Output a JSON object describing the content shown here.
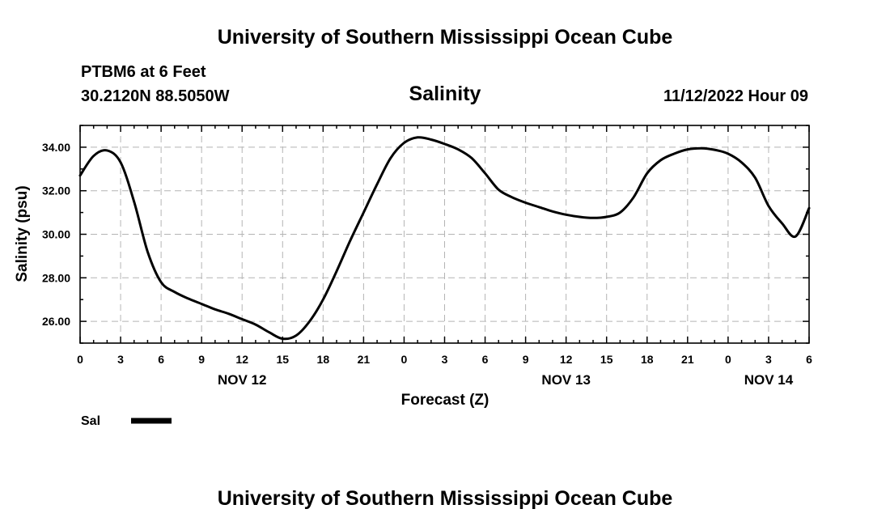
{
  "page": {
    "title_top": "University of Southern Mississippi Ocean Cube",
    "title_bottom": "University of Southern Mississippi Ocean Cube",
    "station": "PTBM6 at 6 Feet",
    "coords": "30.2120N  88.5050W",
    "run_time": "11/12/2022 Hour 09"
  },
  "chart_data": {
    "type": "line",
    "title": "Salinity",
    "xlabel": "Forecast (Z)",
    "ylabel": "Salinity (psu)",
    "xlim": [
      0,
      54
    ],
    "ylim": [
      25.0,
      35.0
    ],
    "yticks": [
      26.0,
      28.0,
      30.0,
      32.0,
      34.0
    ],
    "ytick_labels": [
      "26.00",
      "28.00",
      "30.00",
      "32.00",
      "34.00"
    ],
    "xticks": [
      0,
      3,
      6,
      9,
      12,
      15,
      18,
      21,
      24,
      27,
      30,
      33,
      36,
      39,
      42,
      45,
      48,
      51,
      54
    ],
    "xtick_labels": [
      "0",
      "3",
      "6",
      "9",
      "12",
      "15",
      "18",
      "21",
      "0",
      "3",
      "6",
      "9",
      "12",
      "15",
      "18",
      "21",
      "0",
      "3",
      "6"
    ],
    "day_labels": [
      {
        "hour": 12,
        "label": "NOV 12"
      },
      {
        "hour": 36,
        "label": "NOV 13"
      },
      {
        "hour": 51,
        "label": "NOV 14"
      }
    ],
    "grid": true,
    "legend": [
      {
        "name": "Sal",
        "color": "#000000"
      }
    ],
    "series": [
      {
        "name": "Sal",
        "color": "#000000",
        "x": [
          0,
          1,
          2,
          3,
          4,
          5,
          6,
          7,
          8,
          9,
          10,
          11,
          12,
          13,
          14,
          15,
          16,
          17,
          18,
          19,
          20,
          21,
          22,
          23,
          24,
          25,
          26,
          27,
          28,
          29,
          30,
          31,
          32,
          33,
          34,
          35,
          36,
          37,
          38,
          39,
          40,
          41,
          42,
          43,
          44,
          45,
          46,
          47,
          48,
          49,
          50,
          51,
          52,
          53,
          54
        ],
        "values": [
          32.7,
          33.6,
          33.85,
          33.3,
          31.5,
          29.2,
          27.8,
          27.35,
          27.05,
          26.8,
          26.55,
          26.35,
          26.1,
          25.85,
          25.5,
          25.2,
          25.35,
          26.0,
          27.0,
          28.3,
          29.7,
          31.0,
          32.3,
          33.5,
          34.2,
          34.45,
          34.35,
          34.15,
          33.9,
          33.5,
          32.8,
          32.05,
          31.7,
          31.45,
          31.25,
          31.05,
          30.9,
          30.8,
          30.75,
          30.8,
          31.0,
          31.7,
          32.8,
          33.4,
          33.7,
          33.9,
          33.95,
          33.88,
          33.7,
          33.3,
          32.6,
          31.3,
          30.5,
          29.9,
          31.2
        ]
      }
    ]
  }
}
